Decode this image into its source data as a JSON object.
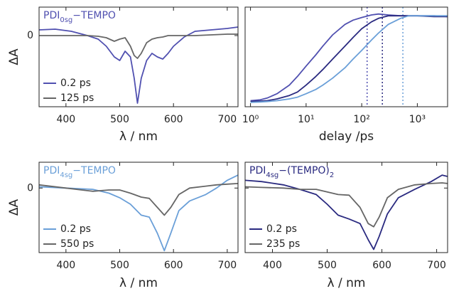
{
  "chart_data": [
    {
      "type": "line",
      "title": [
        "PDI",
        "0sg",
        "−TEMPO"
      ],
      "title_color": "#5050b0",
      "xlabel": "λ / nm",
      "ylabel": "ΔA",
      "xlim": [
        350,
        720
      ],
      "xticks": [
        400,
        500,
        600,
        700
      ],
      "ylim": [
        -1,
        0.4
      ],
      "yticks": [
        0
      ],
      "show_ytick_labels": true,
      "legend": "lower left",
      "x": [
        350,
        380,
        410,
        440,
        460,
        475,
        490,
        500,
        510,
        520,
        527,
        533,
        540,
        550,
        560,
        570,
        580,
        590,
        600,
        620,
        640,
        670,
        700,
        720
      ],
      "series": [
        {
          "name": "0.2 ps",
          "color": "#5050b0",
          "values": [
            0.08,
            0.09,
            0.06,
            0.0,
            -0.05,
            -0.15,
            -0.3,
            -0.35,
            -0.22,
            -0.3,
            -0.6,
            -0.95,
            -0.6,
            -0.35,
            -0.25,
            -0.3,
            -0.33,
            -0.25,
            -0.15,
            -0.02,
            0.06,
            0.08,
            0.1,
            0.12
          ]
        },
        {
          "name": "125 ps",
          "color": "#666666",
          "values": [
            0,
            0,
            0,
            0,
            -0.01,
            -0.03,
            -0.08,
            -0.05,
            -0.03,
            -0.15,
            -0.28,
            -0.32,
            -0.25,
            -0.1,
            -0.05,
            -0.03,
            -0.02,
            0,
            0,
            0,
            0,
            0.01,
            0.02,
            0.02
          ]
        }
      ]
    },
    {
      "type": "line",
      "xlabel": "delay /ps",
      "xscale": "log",
      "xlim": [
        0.8,
        3500
      ],
      "xticks": [
        {
          "value": 1,
          "label": "10⁰"
        },
        {
          "value": 10,
          "label": "10¹"
        },
        {
          "value": 100,
          "label": "10²"
        },
        {
          "value": 1000,
          "label": "10³"
        }
      ],
      "ylim": [
        -0.05,
        1.1
      ],
      "x": [
        1,
        1.5,
        2,
        3,
        5,
        7,
        10,
        15,
        20,
        30,
        50,
        70,
        100,
        150,
        200,
        300,
        500,
        700,
        1000,
        2000,
        3500
      ],
      "series": [
        {
          "color": "#5050b0",
          "values": [
            0.02,
            0.03,
            0.05,
            0.1,
            0.2,
            0.3,
            0.42,
            0.55,
            0.65,
            0.78,
            0.9,
            0.95,
            0.98,
            1.01,
            1.02,
            1.01,
            1.0,
            1.0,
            1.0,
            1.0,
            0.99
          ]
        },
        {
          "color": "#2a2a80",
          "values": [
            0.01,
            0.015,
            0.02,
            0.04,
            0.08,
            0.12,
            0.2,
            0.3,
            0.38,
            0.5,
            0.65,
            0.75,
            0.85,
            0.93,
            0.97,
            1.0,
            1.0,
            1.0,
            1.0,
            0.99,
            0.99
          ]
        },
        {
          "color": "#6a9fd8",
          "values": [
            0,
            0.005,
            0.01,
            0.02,
            0.04,
            0.06,
            0.1,
            0.15,
            0.2,
            0.28,
            0.4,
            0.5,
            0.6,
            0.72,
            0.8,
            0.9,
            0.97,
            1.0,
            1.0,
            1.0,
            1.0
          ]
        }
      ],
      "vlines": [
        {
          "x": 125,
          "color": "#5050b0"
        },
        {
          "x": 235,
          "color": "#2a2a80"
        },
        {
          "x": 550,
          "color": "#6a9fd8"
        }
      ]
    },
    {
      "type": "line",
      "title": [
        "PDI",
        "4sg",
        "−TEMPO"
      ],
      "title_color": "#6a9fd8",
      "xlabel": "λ / nm",
      "ylabel": "ΔA",
      "xlim": [
        350,
        720
      ],
      "xticks": [
        400,
        500,
        600,
        700
      ],
      "ylim": [
        -1,
        0.4
      ],
      "yticks": [
        0
      ],
      "show_ytick_labels": true,
      "legend": "lower left",
      "x": [
        350,
        400,
        450,
        480,
        500,
        520,
        540,
        555,
        570,
        583,
        595,
        610,
        630,
        660,
        680,
        700,
        720
      ],
      "series": [
        {
          "name": "0.2 ps",
          "color": "#6a9fd8",
          "values": [
            0.02,
            0.0,
            -0.02,
            -0.08,
            -0.15,
            -0.25,
            -0.42,
            -0.45,
            -0.7,
            -0.97,
            -0.7,
            -0.35,
            -0.2,
            -0.1,
            0,
            0.12,
            0.2
          ]
        },
        {
          "name": "550 ps",
          "color": "#666666",
          "values": [
            0.05,
            0,
            -0.05,
            -0.03,
            -0.03,
            -0.08,
            -0.14,
            -0.16,
            -0.3,
            -0.42,
            -0.3,
            -0.1,
            0,
            0.03,
            0.05,
            0.06,
            0.07
          ]
        }
      ]
    },
    {
      "type": "line",
      "title": [
        "PDI",
        "4sg",
        "−(TEMPO)",
        "2"
      ],
      "title_color": "#2a2a80",
      "xlabel": "λ / nm",
      "xlim": [
        350,
        720
      ],
      "xticks": [
        400,
        500,
        600,
        700
      ],
      "ylim": [
        -1,
        0.4
      ],
      "yticks": [
        0
      ],
      "show_ytick_labels": false,
      "legend": "lower left",
      "x": [
        350,
        380,
        420,
        450,
        480,
        500,
        520,
        540,
        560,
        575,
        585,
        595,
        610,
        630,
        660,
        690,
        710,
        720
      ],
      "series": [
        {
          "name": "0.2 ps",
          "color": "#2a2a80",
          "values": [
            0.12,
            0.1,
            0.05,
            -0.02,
            -0.1,
            -0.25,
            -0.42,
            -0.48,
            -0.55,
            -0.8,
            -0.95,
            -0.75,
            -0.4,
            -0.15,
            -0.02,
            0.1,
            0.2,
            0.18
          ]
        },
        {
          "name": "235 ps",
          "color": "#666666",
          "values": [
            0.02,
            0.01,
            0,
            -0.02,
            -0.02,
            -0.06,
            -0.1,
            -0.11,
            -0.3,
            -0.55,
            -0.6,
            -0.45,
            -0.15,
            -0.02,
            0.05,
            0.07,
            0.08,
            0.07
          ]
        }
      ]
    }
  ]
}
